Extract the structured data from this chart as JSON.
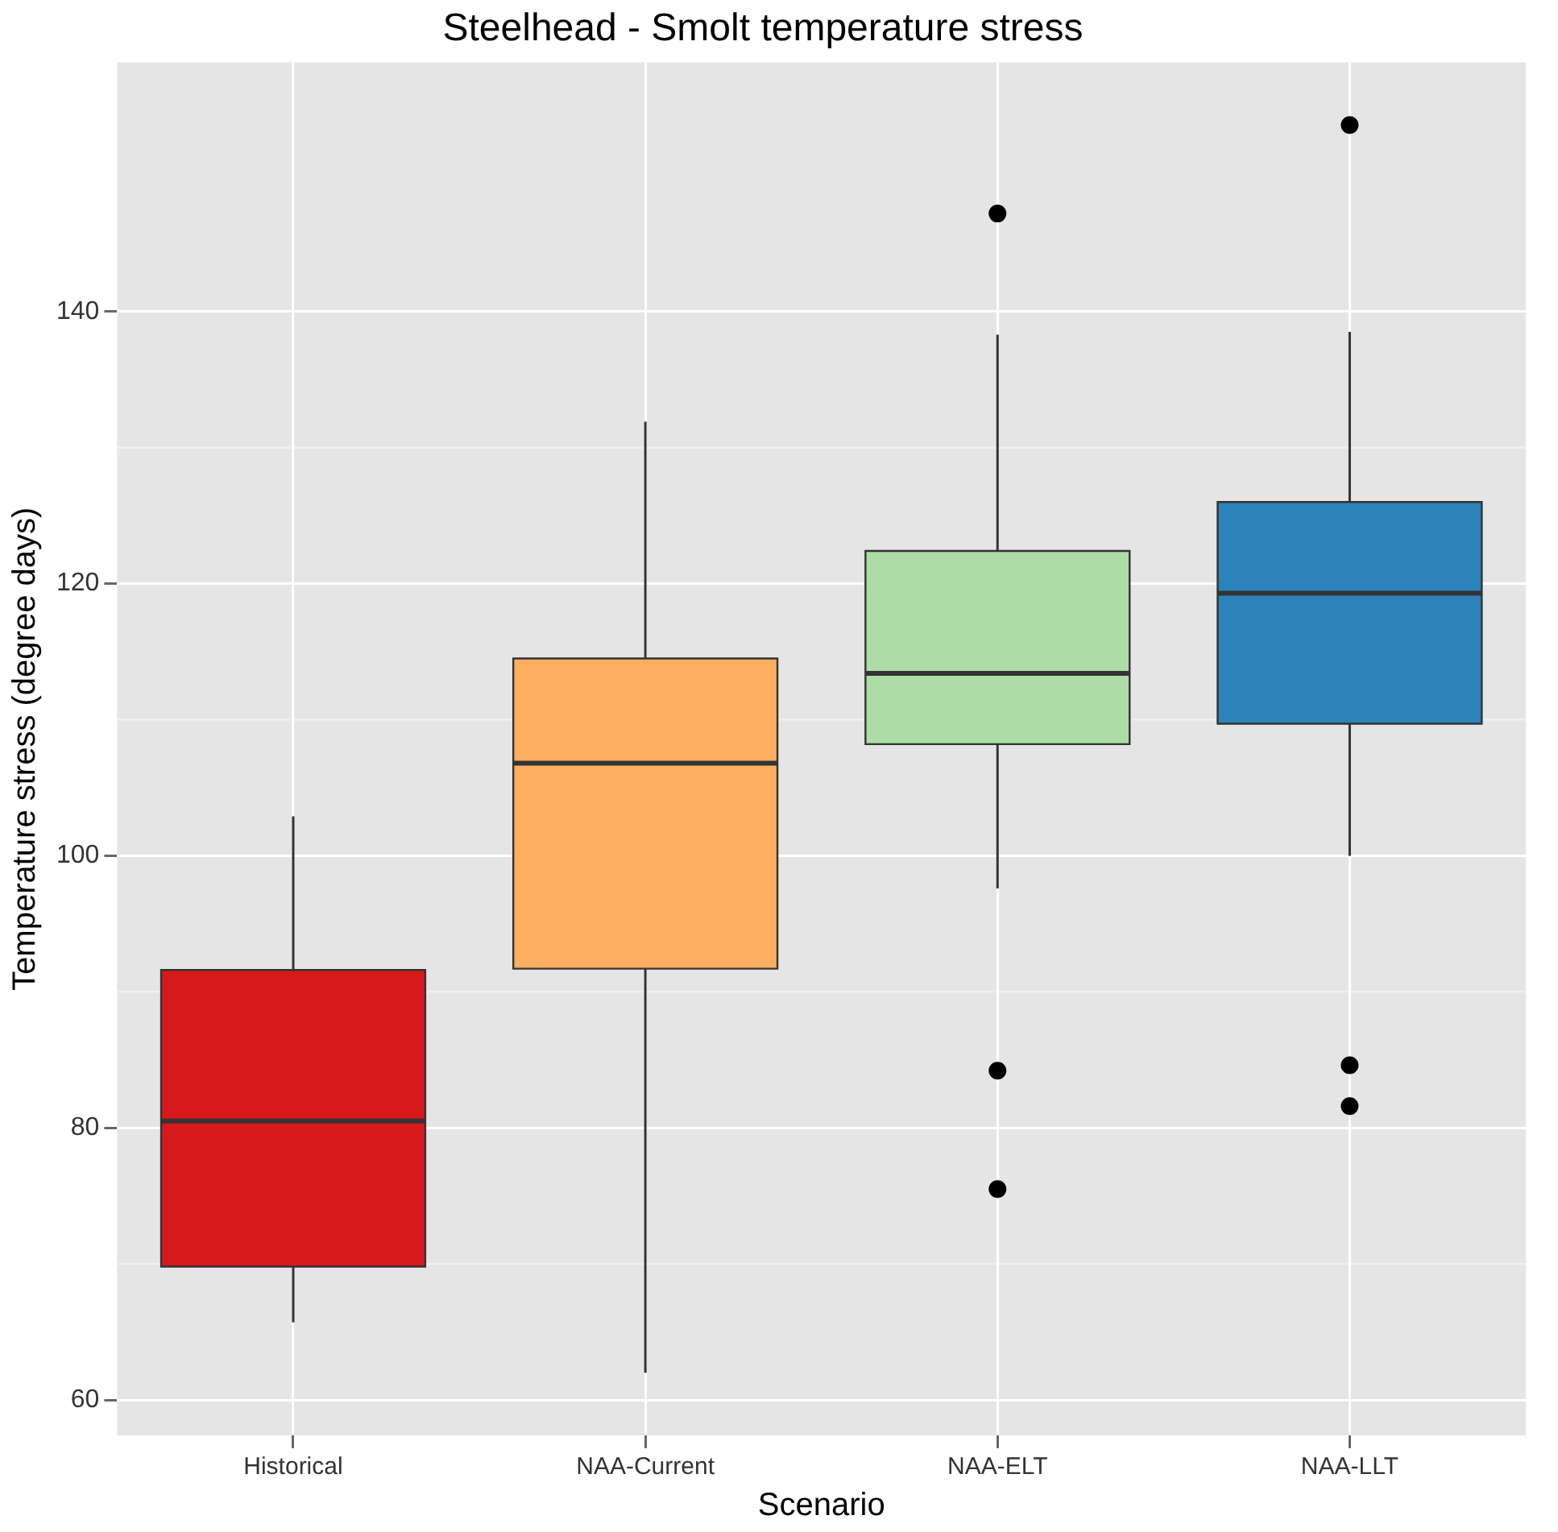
{
  "chart_data": {
    "type": "box",
    "title": "Steelhead - Smolt temperature stress",
    "xlabel": "Scenario",
    "ylabel": "Temperature stress (degree days)",
    "categories": [
      "Historical",
      "NAA-Current",
      "NAA-ELT",
      "NAA-LLT"
    ],
    "colors": [
      "#d7191c",
      "#fdae61",
      "#abdda4",
      "#2b83ba"
    ],
    "boxes": [
      {
        "low": 65.7,
        "q1": 69.8,
        "median": 80.5,
        "q3": 91.6,
        "high": 102.9
      },
      {
        "low": 62.0,
        "q1": 91.7,
        "median": 106.8,
        "q3": 114.5,
        "high": 131.9
      },
      {
        "low": 97.6,
        "q1": 108.2,
        "median": 113.4,
        "q3": 122.4,
        "high": 138.3,
        "outliers": [
          147.2,
          84.2,
          75.5
        ]
      },
      {
        "low": 100.0,
        "q1": 109.7,
        "median": 119.3,
        "q3": 126.0,
        "high": 138.5,
        "outliers": [
          153.7,
          84.6,
          81.6
        ]
      }
    ],
    "ylim": [
      57.4,
      158.3
    ],
    "yticks": [
      60,
      80,
      100,
      120,
      140
    ],
    "grid": true
  }
}
